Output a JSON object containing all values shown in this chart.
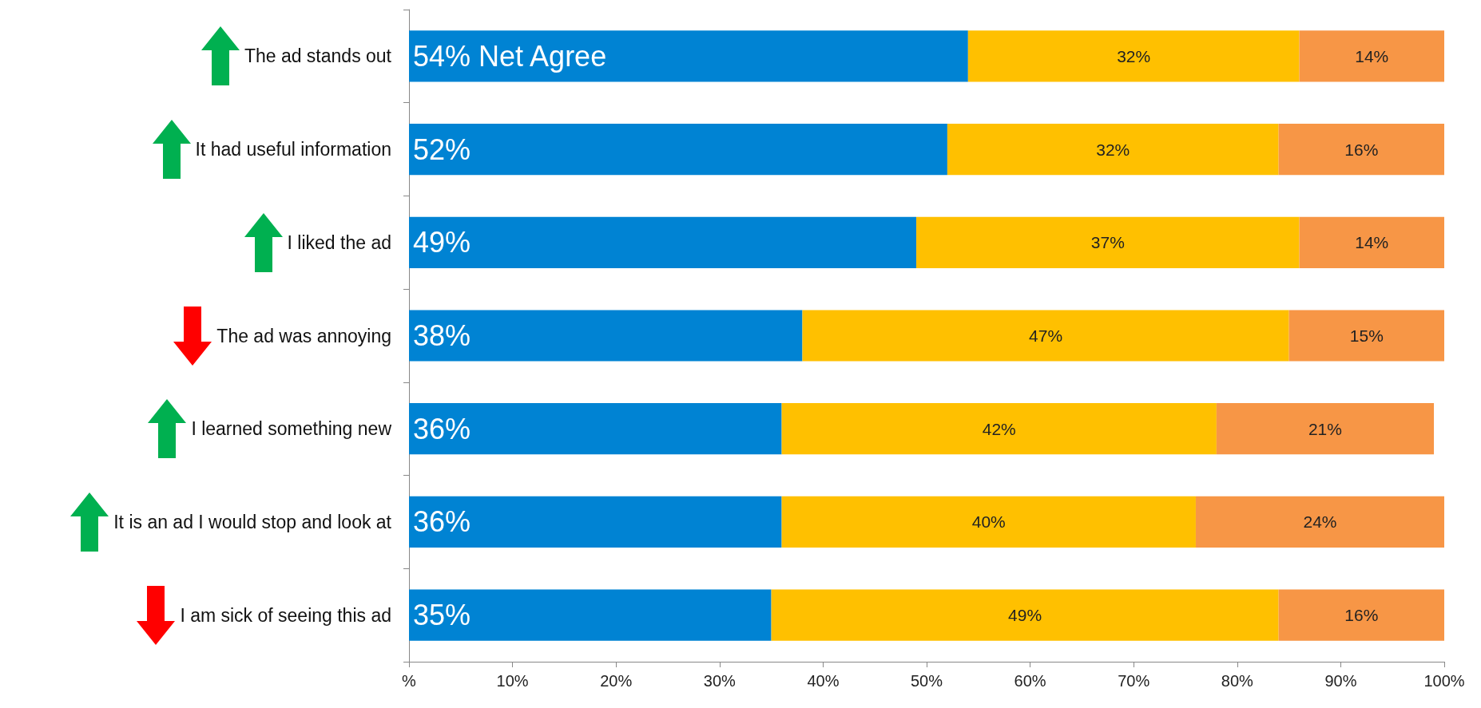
{
  "chart_data": {
    "type": "bar",
    "orientation": "horizontal",
    "stacked": true,
    "categories": [
      "The ad stands out",
      "It had useful information",
      "I liked the ad",
      "The ad was annoying",
      "I learned something new",
      "It is an ad I would stop and look at",
      "I am sick of seeing this ad"
    ],
    "series": [
      {
        "color": "#0083d3",
        "values": [
          54,
          52,
          49,
          38,
          36,
          36,
          35
        ],
        "value_labels": [
          "54% Net Agree",
          "52%",
          "49%",
          "38%",
          "36%",
          "36%",
          "35%"
        ]
      },
      {
        "color": "#ffc000",
        "values": [
          32,
          32,
          37,
          47,
          42,
          40,
          49
        ],
        "value_labels": [
          "32%",
          "32%",
          "37%",
          "47%",
          "42%",
          "40%",
          "49%"
        ]
      },
      {
        "color": "#f79646",
        "values": [
          14,
          16,
          14,
          15,
          21,
          24,
          16
        ],
        "value_labels": [
          "14%",
          "16%",
          "14%",
          "15%",
          "21%",
          "24%",
          "16%"
        ]
      }
    ],
    "xlim": [
      0,
      100
    ],
    "xticks": [
      {
        "value": 0,
        "label": "%"
      },
      {
        "value": 10,
        "label": "10%"
      },
      {
        "value": 20,
        "label": "20%"
      },
      {
        "value": 30,
        "label": "30%"
      },
      {
        "value": 40,
        "label": "40%"
      },
      {
        "value": 50,
        "label": "50%"
      },
      {
        "value": 60,
        "label": "60%"
      },
      {
        "value": 70,
        "label": "70%"
      },
      {
        "value": 80,
        "label": "80%"
      },
      {
        "value": 90,
        "label": "90%"
      },
      {
        "value": 100,
        "label": "100%"
      }
    ],
    "grid": false
  }
}
